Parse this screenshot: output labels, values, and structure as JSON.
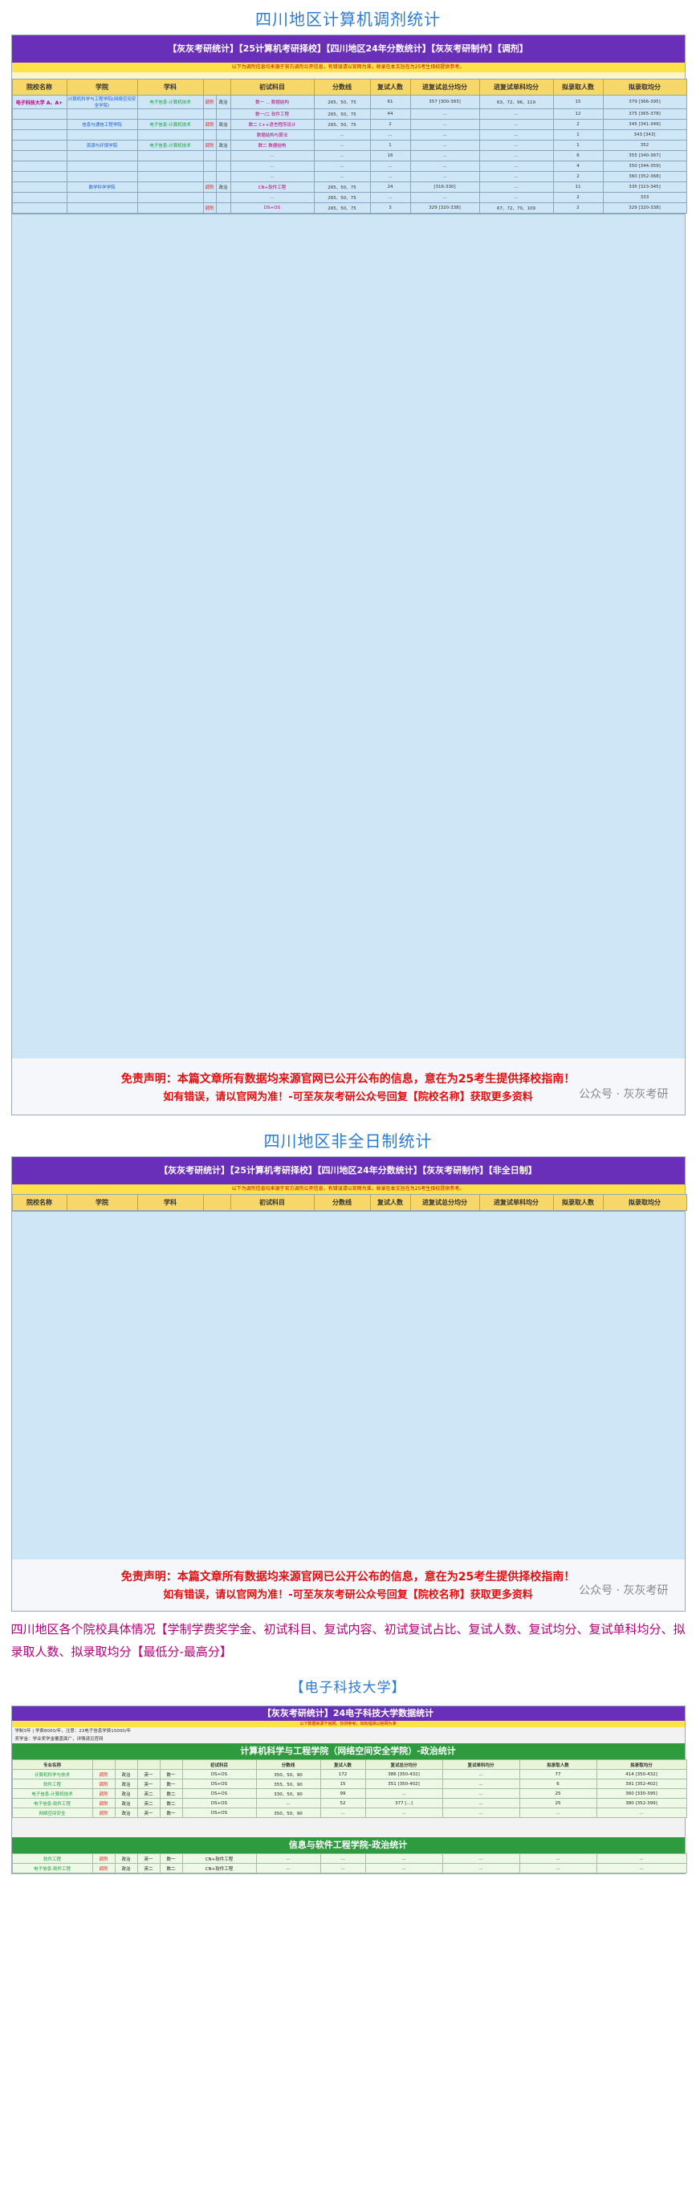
{
  "section1": {
    "title": "四川地区计算机调剂统计",
    "banner": "【灰灰考研统计】【25计算机考研择校】【四川地区24年分数统计】【灰灰考研制作】【调剂】",
    "notice": "以下为调剂信息均来源于官方调剂公开信息，有错误请以官网为准，收录在本文旨在为25考生择校提供参考。"
  },
  "headers": [
    "院校名称",
    "学院",
    "学科",
    "",
    "",
    "初试科目",
    "分数线",
    "复试人数",
    "进复试总分均分",
    "进复试单科均分",
    "拟录取人数",
    "拟录取均分"
  ],
  "rows": [
    {
      "uni": "电子科技大学 A、A+",
      "sch": "计算机科学与工程学院(网络空间安全学院)",
      "maj": "电子信息-计算机技术",
      "t": "调剂",
      "m": "政治",
      "s": "数一 ... 数据结构",
      "line": "265、50、75",
      "n": "61",
      "avg": "357 [300-383]",
      "single": "63、72、96、119",
      "adm": "15",
      "aavg": "379 [366-395]"
    },
    {
      "uni": "",
      "sch": "",
      "maj": "",
      "t": "",
      "m": "",
      "s": "数一/二 软件工程",
      "line": "265、50、75",
      "n": "44",
      "avg": "...",
      "single": "...",
      "adm": "12",
      "aavg": "375 [365-378]"
    },
    {
      "uni": "",
      "sch": "信息与通信工程学院",
      "maj": "电子信息-计算机技术",
      "t": "调剂",
      "m": "政治",
      "s": "数二 C++语言程序设计",
      "line": "265、50、75",
      "n": "2",
      "avg": "...",
      "single": "...",
      "adm": "2",
      "aavg": "345 [341-349]"
    },
    {
      "uni": "",
      "sch": "",
      "maj": "",
      "t": "",
      "m": "",
      "s": "数据结构与算法",
      "line": "...",
      "n": "...",
      "avg": "...",
      "single": "...",
      "adm": "1",
      "aavg": "343 [343]"
    },
    {
      "uni": "",
      "sch": "资源与环境学院",
      "maj": "电子信息-计算机技术",
      "t": "调剂",
      "m": "政治",
      "s": "数二 数据结构",
      "line": "...",
      "n": "1",
      "avg": "...",
      "single": "...",
      "adm": "1",
      "aavg": "352"
    },
    {
      "uni": "",
      "sch": "",
      "maj": "",
      "t": "",
      "m": "",
      "s": "...",
      "line": "...",
      "n": "16",
      "avg": "...",
      "single": "...",
      "adm": "6",
      "aavg": "355 [340-367]"
    },
    {
      "uni": "",
      "sch": "",
      "maj": "",
      "t": "",
      "m": "",
      "s": "...",
      "line": "...",
      "n": "...",
      "avg": "...",
      "single": "...",
      "adm": "4",
      "aavg": "350 [344-359]"
    },
    {
      "uni": "",
      "sch": "",
      "maj": "",
      "t": "",
      "m": "",
      "s": "...",
      "line": "...",
      "n": "...",
      "avg": "...",
      "single": "...",
      "adm": "2",
      "aavg": "360 [352-368]"
    },
    {
      "uni": "",
      "sch": "数学科学学院",
      "maj": "",
      "t": "调剂",
      "m": "政治",
      "s": "CN+软件工程",
      "line": "265、50、75",
      "n": "24",
      "avg": "[316-330]",
      "single": "...",
      "adm": "11",
      "aavg": "335 [323-345]"
    },
    {
      "uni": "",
      "sch": "",
      "maj": "",
      "t": "",
      "m": "",
      "s": "...",
      "line": "265、50、75",
      "n": "...",
      "avg": "...",
      "single": "...",
      "adm": "2",
      "aavg": "333"
    },
    {
      "uni": "",
      "sch": "",
      "maj": "",
      "t": "调剂",
      "m": "",
      "s": "DS+OS",
      "line": "265、50、75",
      "n": "3",
      "avg": "329 [320-338]",
      "single": "67、72、70、109",
      "adm": "2",
      "aavg": "329 [320-338]"
    }
  ],
  "disclaimer": {
    "line1": "免责声明：本篇文章所有数据均来源官网已公开公布的信息，意在为25考生提供择校指南！",
    "line2": "如有错误，请以官网为准！-可至灰灰考研公众号回复【院校名称】获取更多资料",
    "watermark": "公众号 · 灰灰考研"
  },
  "section2": {
    "title": "四川地区非全日制统计",
    "banner": "【灰灰考研统计】【25计算机考研择校】【四川地区24年分数统计】【灰灰考研制作】【非全日制】"
  },
  "region_info": "四川地区各个院校具体情况【学制学费奖学金、初试科目、复试内容、初试复试占比、复试人数、复试均分、复试单科均分、拟录取人数、拟录取均分【最低分-最高分】",
  "uestc": {
    "title": "【电子科技大学】",
    "banner": "【灰灰考研统计】24电子科技大学数据统计",
    "note": "以下数据来源于官网，仅供参考，如有错误以官网为准",
    "info1": "学制3年 | 学费8000/年，注意：23电子信息学费15000/年",
    "info2": "奖学金：学业奖学金覆盖面广，详情请见官网",
    "head1": "计算机科学与工程学院（网络空间安全学院）-政治统计",
    "head2": "信息与软件工程学院-政治统计",
    "cols": [
      "专业名称",
      "",
      "",
      "",
      "",
      "初试科目",
      "分数线",
      "复试人数",
      "复试总分均分",
      "复试单科均分",
      "拟录取人数",
      "拟录取均分"
    ],
    "r1": [
      "计算机科学与技术",
      "调剂",
      "政治",
      "英一",
      "数一",
      "DS+OS",
      "350、50、90",
      "172",
      "386 [350-432]",
      "...",
      "77",
      "414 [350-432]"
    ],
    "r2": [
      "软件工程",
      "调剂",
      "政治",
      "英一",
      "数一",
      "DS+OS",
      "355、50、90",
      "15",
      "351 [350-402]",
      "...",
      "6",
      "391 [352-402]"
    ],
    "r3": [
      "电子信息-计算机技术",
      "调剂",
      "政治",
      "英二",
      "数二",
      "DS+OS",
      "330、50、90",
      "99",
      "...",
      "...",
      "25",
      "360 [330-395]"
    ],
    "r4": [
      "电子信息-软件工程",
      "调剂",
      "政治",
      "英二",
      "数二",
      "DS+OS",
      "...",
      "52",
      "377 [...]",
      "...",
      "25",
      "380 [352-399]"
    ],
    "r5": [
      "网络空间安全",
      "调剂",
      "政治",
      "英一",
      "数一",
      "DS+OS",
      "350、50、90",
      "...",
      "...",
      "...",
      "...",
      "..."
    ],
    "r6": [
      "软件工程",
      "调剂",
      "政治",
      "英一",
      "数一",
      "CN+软件工程",
      "...",
      "...",
      "...",
      "...",
      "...",
      "..."
    ],
    "r7": [
      "电子信息-软件工程",
      "调剂",
      "政治",
      "英二",
      "数二",
      "CN+软件工程",
      "...",
      "...",
      "...",
      "...",
      "...",
      "..."
    ]
  }
}
